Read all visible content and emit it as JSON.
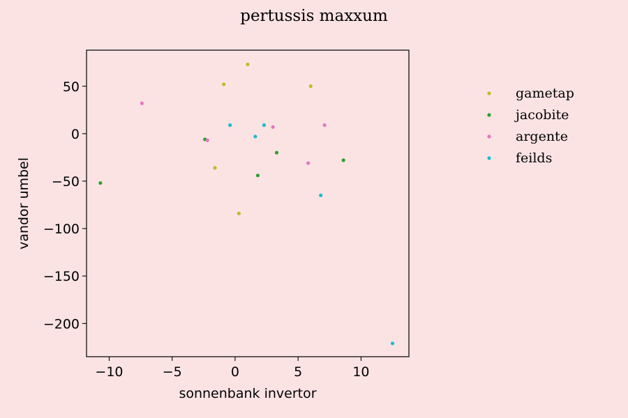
{
  "chart_data": {
    "type": "scatter",
    "title": "pertussis maxxum",
    "xlabel": "sonnenbank invertor",
    "ylabel": "vandor umbel",
    "xlim": [
      -11.8,
      13.8
    ],
    "ylim": [
      -235,
      88
    ],
    "xticks": [
      -10,
      -5,
      0,
      5,
      10
    ],
    "yticks": [
      50,
      0,
      -50,
      -100,
      -150,
      -200
    ],
    "xtick_labels": [
      "−10",
      "−5",
      "0",
      "5",
      "10"
    ],
    "ytick_labels": [
      "50",
      "0",
      "−50",
      "−100",
      "−150",
      "−200"
    ],
    "grid": false,
    "legend_position": "outside-right",
    "series": [
      {
        "name": "gametap",
        "color": "#bcbd22",
        "points": [
          [
            1.0,
            73
          ],
          [
            -0.9,
            52
          ],
          [
            6.0,
            50
          ],
          [
            -1.6,
            -36
          ],
          [
            0.3,
            -84
          ]
        ]
      },
      {
        "name": "jacobite",
        "color": "#2ca02c",
        "points": [
          [
            -2.4,
            -6
          ],
          [
            3.3,
            -20
          ],
          [
            1.8,
            -44
          ],
          [
            8.6,
            -28
          ],
          [
            -10.7,
            -52
          ]
        ]
      },
      {
        "name": "argente",
        "color": "#e377c2",
        "points": [
          [
            -7.4,
            32
          ],
          [
            -2.2,
            -7
          ],
          [
            3.0,
            7
          ],
          [
            7.1,
            9
          ],
          [
            5.8,
            -31
          ]
        ]
      },
      {
        "name": "feilds",
        "color": "#17becf",
        "points": [
          [
            -0.4,
            9
          ],
          [
            1.6,
            -3
          ],
          [
            2.3,
            9
          ],
          [
            6.8,
            -65
          ],
          [
            12.5,
            -221
          ]
        ]
      }
    ]
  }
}
